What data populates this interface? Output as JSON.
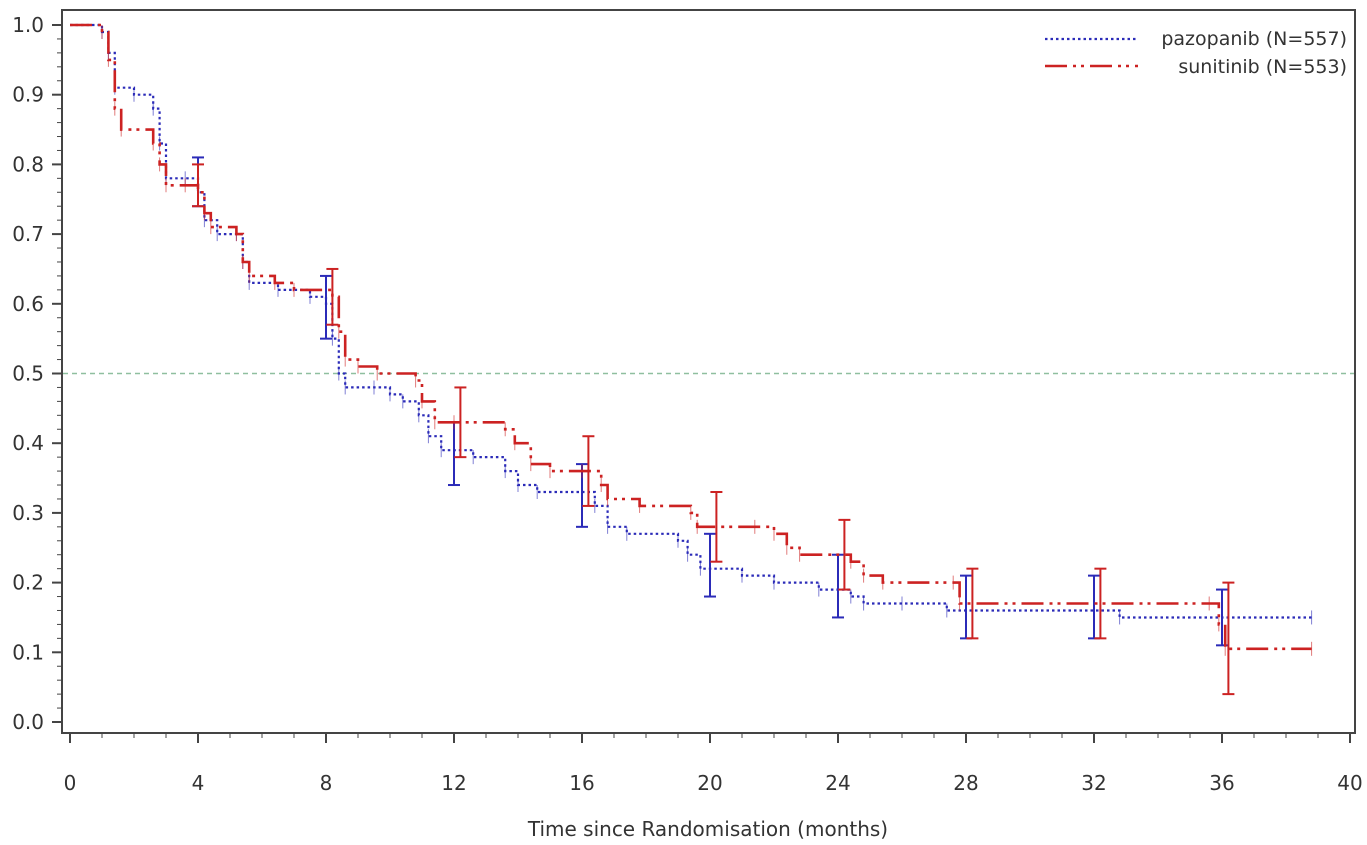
{
  "chart_data": {
    "type": "line",
    "subtype": "kaplan-meier",
    "title": "",
    "xlabel": "Time since Randomisation (months)",
    "ylabel": "",
    "xlim": [
      0,
      40
    ],
    "ylim": [
      0,
      1
    ],
    "xticks": [
      0,
      4,
      8,
      12,
      16,
      20,
      24,
      28,
      32,
      36,
      40
    ],
    "xtick_labels": [
      "0",
      "4",
      "8",
      "12",
      "16",
      "20",
      "24",
      "28",
      "32",
      "36",
      "40"
    ],
    "yticks": [
      0,
      0.1,
      0.2,
      0.3,
      0.4,
      0.5,
      0.6,
      0.7,
      0.8,
      0.9,
      1.0
    ],
    "ytick_labels": [
      "0.0",
      "0.1",
      "0.2",
      "0.3",
      "0.4",
      "0.5",
      "0.6",
      "0.7",
      "0.8",
      "0.9",
      "1.0"
    ],
    "grid": false,
    "legend_position": "top-right",
    "reference_line": {
      "y": 0.5,
      "color": "#8fbf9f"
    },
    "series": [
      {
        "name": "pazopanib (N=557)",
        "color": "#2b2bb8",
        "dash": "dotted",
        "points": [
          [
            0,
            1.0
          ],
          [
            1.0,
            0.99
          ],
          [
            1.2,
            0.96
          ],
          [
            1.4,
            0.91
          ],
          [
            2.0,
            0.9
          ],
          [
            2.6,
            0.88
          ],
          [
            2.8,
            0.83
          ],
          [
            3.0,
            0.78
          ],
          [
            3.6,
            0.78
          ],
          [
            4.0,
            0.76
          ],
          [
            4.2,
            0.72
          ],
          [
            4.6,
            0.7
          ],
          [
            5.2,
            0.7
          ],
          [
            5.4,
            0.66
          ],
          [
            5.6,
            0.63
          ],
          [
            6.5,
            0.62
          ],
          [
            7.5,
            0.61
          ],
          [
            8.0,
            0.6
          ],
          [
            8.2,
            0.55
          ],
          [
            8.4,
            0.5
          ],
          [
            8.6,
            0.48
          ],
          [
            9.5,
            0.48
          ],
          [
            10.0,
            0.47
          ],
          [
            10.4,
            0.46
          ],
          [
            10.9,
            0.44
          ],
          [
            11.2,
            0.41
          ],
          [
            11.6,
            0.39
          ],
          [
            12.0,
            0.39
          ],
          [
            12.6,
            0.38
          ],
          [
            13.6,
            0.36
          ],
          [
            14.0,
            0.34
          ],
          [
            14.6,
            0.33
          ],
          [
            16.0,
            0.33
          ],
          [
            16.4,
            0.31
          ],
          [
            16.8,
            0.28
          ],
          [
            17.4,
            0.27
          ],
          [
            19.0,
            0.26
          ],
          [
            19.3,
            0.24
          ],
          [
            19.7,
            0.22
          ],
          [
            21.0,
            0.21
          ],
          [
            22.0,
            0.2
          ],
          [
            23.4,
            0.19
          ],
          [
            24.4,
            0.18
          ],
          [
            24.8,
            0.17
          ],
          [
            26.0,
            0.17
          ],
          [
            27.4,
            0.16
          ],
          [
            32.0,
            0.16
          ],
          [
            32.8,
            0.15
          ],
          [
            38.8,
            0.15
          ]
        ],
        "ci_bars": [
          {
            "x": 4,
            "y": 0.78,
            "lower": 0.74,
            "upper": 0.81
          },
          {
            "x": 8,
            "y": 0.6,
            "lower": 0.55,
            "upper": 0.64
          },
          {
            "x": 12,
            "y": 0.39,
            "lower": 0.34,
            "upper": 0.43
          },
          {
            "x": 16,
            "y": 0.33,
            "lower": 0.28,
            "upper": 0.37
          },
          {
            "x": 20,
            "y": 0.23,
            "lower": 0.18,
            "upper": 0.27
          },
          {
            "x": 24,
            "y": 0.19,
            "lower": 0.15,
            "upper": 0.24
          },
          {
            "x": 28,
            "y": 0.16,
            "lower": 0.12,
            "upper": 0.21
          },
          {
            "x": 32,
            "y": 0.16,
            "lower": 0.12,
            "upper": 0.21
          },
          {
            "x": 36,
            "y": 0.15,
            "lower": 0.11,
            "upper": 0.19
          }
        ]
      },
      {
        "name": "sunitinib (N=553)",
        "color": "#cc2222",
        "dash": "dash-dot-dot",
        "points": [
          [
            0,
            1.0
          ],
          [
            1.0,
            0.99
          ],
          [
            1.2,
            0.95
          ],
          [
            1.4,
            0.88
          ],
          [
            1.6,
            0.85
          ],
          [
            2.6,
            0.83
          ],
          [
            2.8,
            0.8
          ],
          [
            3.0,
            0.77
          ],
          [
            3.6,
            0.77
          ],
          [
            4.0,
            0.76
          ],
          [
            4.2,
            0.73
          ],
          [
            4.4,
            0.71
          ],
          [
            5.2,
            0.7
          ],
          [
            5.4,
            0.66
          ],
          [
            5.6,
            0.64
          ],
          [
            6.4,
            0.63
          ],
          [
            7.0,
            0.62
          ],
          [
            8.2,
            0.61
          ],
          [
            8.4,
            0.56
          ],
          [
            8.6,
            0.52
          ],
          [
            9.0,
            0.51
          ],
          [
            9.6,
            0.5
          ],
          [
            10.8,
            0.49
          ],
          [
            11.0,
            0.46
          ],
          [
            11.4,
            0.43
          ],
          [
            12.0,
            0.43
          ],
          [
            13.6,
            0.42
          ],
          [
            13.9,
            0.4
          ],
          [
            14.4,
            0.37
          ],
          [
            15.0,
            0.36
          ],
          [
            16.0,
            0.36
          ],
          [
            16.6,
            0.34
          ],
          [
            16.8,
            0.32
          ],
          [
            17.8,
            0.31
          ],
          [
            19.4,
            0.3
          ],
          [
            19.6,
            0.28
          ],
          [
            21.4,
            0.28
          ],
          [
            22.0,
            0.27
          ],
          [
            22.4,
            0.25
          ],
          [
            22.8,
            0.24
          ],
          [
            24.4,
            0.23
          ],
          [
            24.8,
            0.21
          ],
          [
            25.4,
            0.2
          ],
          [
            27.6,
            0.2
          ],
          [
            27.8,
            0.17
          ],
          [
            35.6,
            0.17
          ],
          [
            35.9,
            0.14
          ],
          [
            36.1,
            0.105
          ],
          [
            38.8,
            0.105
          ]
        ],
        "ci_bars": [
          {
            "x": 4,
            "y": 0.77,
            "lower": 0.74,
            "upper": 0.8
          },
          {
            "x": 8.2,
            "y": 0.61,
            "lower": 0.57,
            "upper": 0.65
          },
          {
            "x": 12.2,
            "y": 0.43,
            "lower": 0.38,
            "upper": 0.48
          },
          {
            "x": 16.2,
            "y": 0.36,
            "lower": 0.31,
            "upper": 0.41
          },
          {
            "x": 20.2,
            "y": 0.28,
            "lower": 0.23,
            "upper": 0.33
          },
          {
            "x": 24.2,
            "y": 0.24,
            "lower": 0.19,
            "upper": 0.29
          },
          {
            "x": 28.2,
            "y": 0.17,
            "lower": 0.12,
            "upper": 0.22
          },
          {
            "x": 32.2,
            "y": 0.17,
            "lower": 0.12,
            "upper": 0.22
          },
          {
            "x": 36.2,
            "y": 0.105,
            "lower": 0.04,
            "upper": 0.2
          }
        ]
      }
    ]
  }
}
